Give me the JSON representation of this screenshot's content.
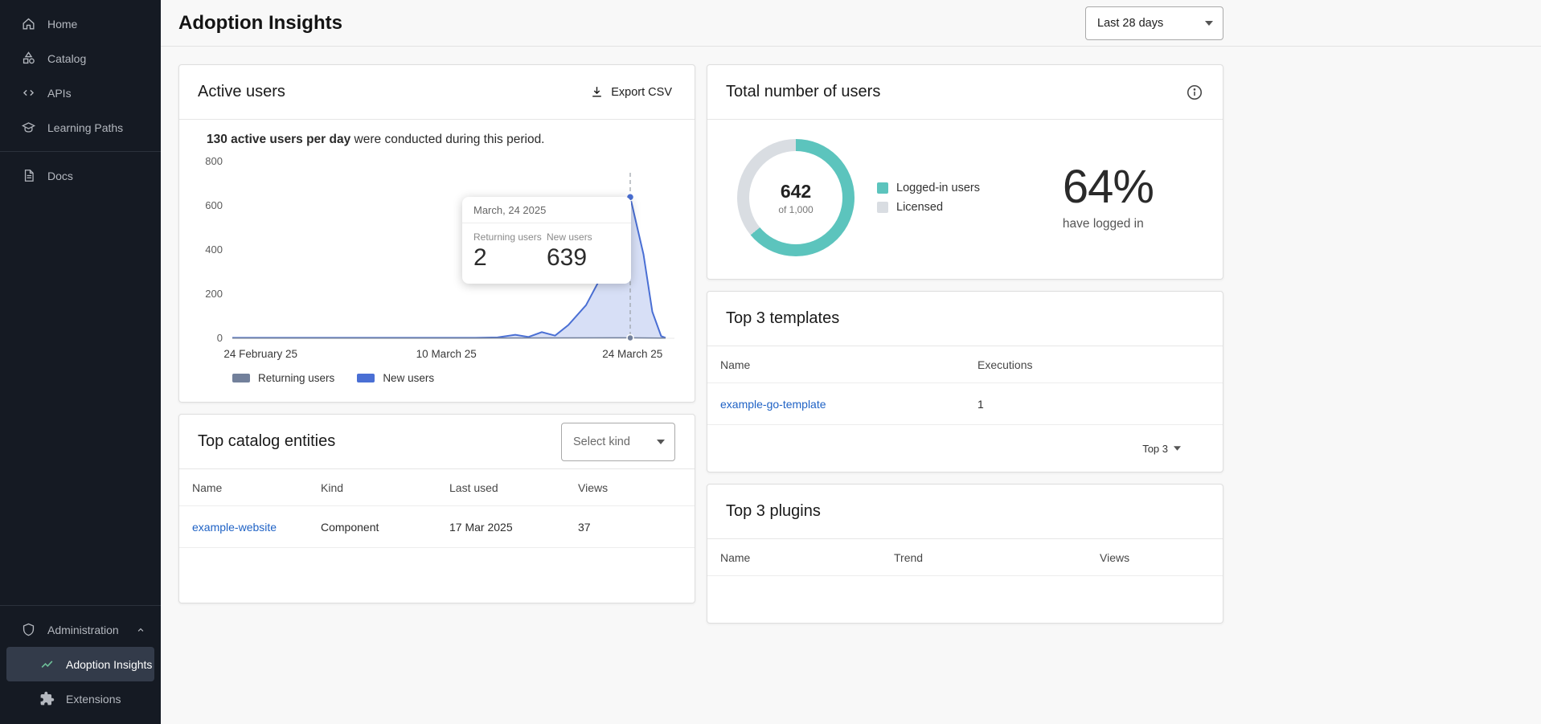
{
  "colors": {
    "sidebar_bg": "#151a23",
    "selected_item_bg": "#333b4a",
    "link": "#1f62c5",
    "insights_icon_green": "#6fc29b",
    "donut_filled": "#5cc4bd",
    "donut_rest": "#d9dde2",
    "chart_line": "#4a6fd4",
    "chart_fill": "rgba(74,111,212,0.22)",
    "returning_line": "#72809b"
  },
  "sidebar": {
    "items": [
      {
        "label": "Home"
      },
      {
        "label": "Catalog"
      },
      {
        "label": "APIs"
      },
      {
        "label": "Learning Paths"
      },
      {
        "label": "Docs"
      }
    ],
    "admin": {
      "label": "Administration"
    },
    "admin_children": [
      {
        "label": "Adoption Insights",
        "selected": true
      },
      {
        "label": "Extensions",
        "selected": false
      }
    ]
  },
  "header": {
    "title": "Adoption Insights",
    "range_select_value": "Last 28 days"
  },
  "active_users_card": {
    "title": "Active users",
    "export_label": "Export CSV",
    "summary_strong": "130 active users per day",
    "summary_rest": " were conducted during this period.",
    "tooltip": {
      "date": "March, 24 2025",
      "returning_label": "Returning users",
      "returning_value": "2",
      "new_label": "New users",
      "new_value": "639"
    },
    "chart_data": {
      "type": "area",
      "title": "Active users per day",
      "ylim": [
        0,
        800
      ],
      "y_ticks": [
        800,
        600,
        400,
        200,
        0
      ],
      "x_ticks": [
        {
          "label": "24 February 25",
          "f": 0.064
        },
        {
          "label": "10 March 25",
          "f": 0.484
        },
        {
          "label": "24 March 25",
          "f": 0.905
        }
      ],
      "grid": false,
      "legend_position": "bottom-left",
      "series": [
        {
          "name": "Returning users",
          "color": "#72809b",
          "points": [
            [
              0,
              1
            ],
            [
              0.55,
              1
            ],
            [
              0.9,
              2
            ],
            [
              0.98,
              1
            ]
          ]
        },
        {
          "name": "New users",
          "color": "#4a6fd4",
          "fill": "rgba(74,111,212,0.22)",
          "points": [
            [
              0,
              2
            ],
            [
              0.55,
              2
            ],
            [
              0.6,
              4
            ],
            [
              0.64,
              16
            ],
            [
              0.67,
              6
            ],
            [
              0.7,
              28
            ],
            [
              0.73,
              12
            ],
            [
              0.76,
              60
            ],
            [
              0.8,
              150
            ],
            [
              0.84,
              300
            ],
            [
              0.87,
              470
            ],
            [
              0.9,
              639
            ],
            [
              0.93,
              380
            ],
            [
              0.95,
              120
            ],
            [
              0.97,
              10
            ],
            [
              0.98,
              2
            ]
          ]
        }
      ],
      "highlight_f": 0.9,
      "highlight": {
        "date": "March, 24 2025",
        "returning_users": 2,
        "new_users": 639
      }
    }
  },
  "total_users_card": {
    "title": "Total number of users",
    "donut": {
      "value": "642",
      "of_label": "of 1,000",
      "percent": "64%",
      "percent_value": 64,
      "caption": "have logged in",
      "filled_color": "#5cc4bd",
      "rest_color": "#d9dde2"
    },
    "legend": [
      {
        "label": "Logged-in users",
        "color": "#5cc4bd"
      },
      {
        "label": "Licensed",
        "color": "#d9dde2"
      }
    ]
  },
  "top_templates_card": {
    "title": "Top 3 templates",
    "columns": [
      "Name",
      "Executions"
    ],
    "rows": [
      {
        "name": "example-go-template",
        "executions": "1"
      }
    ],
    "footer_label": "Top 3"
  },
  "top_catalog_card": {
    "title": "Top catalog entities",
    "kind_select_value": "Select kind",
    "columns": [
      "Name",
      "Kind",
      "Last used",
      "Views"
    ],
    "rows": [
      {
        "name": "example-website",
        "kind": "Component",
        "last_used": "17 Mar 2025",
        "views": "37"
      }
    ]
  },
  "top_plugins_card": {
    "title": "Top 3 plugins",
    "columns": [
      "Name",
      "Trend",
      "Views"
    ]
  }
}
